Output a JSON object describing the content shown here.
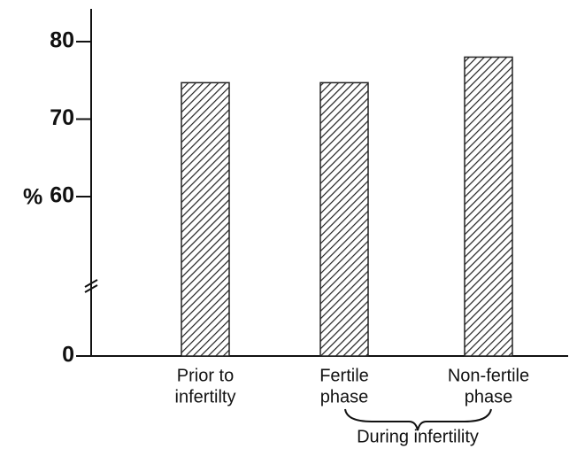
{
  "chart_data": {
    "type": "bar",
    "ylabel": "%",
    "categories": [
      [
        "Prior to",
        "infertilty"
      ],
      [
        "Fertile",
        "phase"
      ],
      [
        "Non-fertile",
        "phase"
      ]
    ],
    "values": [
      74.7,
      74.7,
      78
    ],
    "color": "#222222",
    "hatch": true,
    "ylim": [
      0,
      80
    ],
    "yticks": [
      0,
      60,
      70,
      80
    ],
    "axis_break": true,
    "annotation": "During infertility"
  }
}
